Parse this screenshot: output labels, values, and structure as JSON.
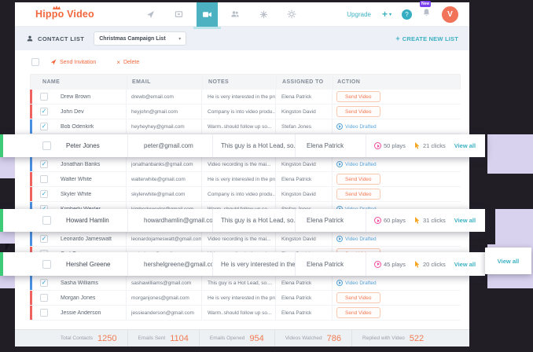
{
  "colors": {
    "brand_orange": "#f2673d",
    "teal": "#3cb1c3",
    "drafted_blue": "#58a6dc",
    "strip_red": "#f0625f",
    "strip_blue": "#4a90e2",
    "overlay_green": "#3ecb78",
    "lavender": "#d9d2ee",
    "plays_pink": "#ef4da0",
    "clicks_orange": "#f5a623",
    "dark_bg": "#211e26"
  },
  "icons": {
    "checkmark": "✓",
    "caret_down": "▾",
    "delete_x": "×",
    "plus": "+",
    "help": "?",
    "nav": [
      "rocket-icon",
      "screen-icon",
      "video-camera-icon",
      "contacts-icon",
      "integrations-icon",
      "settings-icon"
    ],
    "nav_active": "video-camera-icon"
  },
  "navbar": {
    "logo_text": "Hippo Video",
    "upgrade_label": "Upgrade",
    "bell_badge": "New",
    "avatar_initial": "V"
  },
  "subheader": {
    "title": "CONTACT LIST",
    "dropdown_value": "Christmas Campaign List",
    "create_new_label": "CREATE NEW LIST"
  },
  "toolbar": {
    "send_invitation_label": "Send Invitation",
    "delete_label": "Delete"
  },
  "tooltip": {
    "view_all": "View all"
  },
  "table": {
    "headers": [
      "NAME",
      "EMAIL",
      "NOTES",
      "ASSIGNED TO",
      "ACTION"
    ],
    "rows": [
      {
        "type": "normal",
        "name": "Drew Brown",
        "email": "drewb@email.com",
        "notes": "He is very interested in the prod..",
        "assigned": "Elena Patrick",
        "action": "send",
        "action_label": "Send Video",
        "checked": false,
        "strip": "red"
      },
      {
        "type": "normal",
        "name": "John Dev",
        "email": "heyjohn@gmail.com",
        "notes": "Company is into video produ...",
        "assigned": "Kingston David",
        "action": "send",
        "action_label": "Send Video",
        "checked": true,
        "strip": "red"
      },
      {
        "type": "normal",
        "name": "Bob Odenkirk",
        "email": "heyheyhey@gmail.com",
        "notes": "Warm..should follow up so...",
        "assigned": "Stefan Jones",
        "action": "drafted",
        "action_label": "Video Drafted",
        "checked": true,
        "strip": "blue"
      },
      {
        "type": "overlay",
        "name": "Peter Jones",
        "email": "peter@gmail.com",
        "notes": "This guy is a Hot Lead, so...",
        "assigned": "Elena Patrick",
        "plays": "50 plays",
        "clicks": "21 clicks",
        "view_all": "View all",
        "checked": false
      },
      {
        "type": "normal",
        "name": "Jonathan Banks",
        "email": "jonathanbanks@gmail.com",
        "notes": "Video recording is the mai...",
        "assigned": "Kingston David",
        "action": "drafted",
        "action_label": "Video Drafted",
        "checked": true,
        "strip": "blue"
      },
      {
        "type": "normal",
        "name": "Walter White",
        "email": "walterwhite@gmail.com",
        "notes": "He is very interested in the prod..",
        "assigned": "Elena Patrick",
        "action": "send",
        "action_label": "Send Video",
        "checked": false,
        "strip": "red"
      },
      {
        "type": "normal",
        "name": "Skyler White",
        "email": "skylerwhite@gmail.com",
        "notes": "Company is into video produ...",
        "assigned": "Kingston David",
        "action": "send",
        "action_label": "Send Video",
        "checked": true,
        "strip": "red"
      },
      {
        "type": "normal",
        "name": "Kimberly Wexler",
        "email": "kimberlywexler@gmail.com",
        "notes": "Warm..should follow up so...",
        "assigned": "Stefan Jones",
        "action": "drafted",
        "action_label": "Video Drafted",
        "checked": true,
        "strip": "blue"
      },
      {
        "type": "overlay",
        "name": "Howard Hamlin",
        "email": "howardhamlin@gmail.com",
        "notes": "This guy is a Hot Lead, so...",
        "assigned": "Elena Patrick",
        "plays": "60 plays",
        "clicks": "31 clicks",
        "view_all": "View all",
        "checked": false
      },
      {
        "type": "normal",
        "name": "Leonardo Jameswatt",
        "email": "leonardojameswatt@gmail.com",
        "notes": "Video recording is the mai...",
        "assigned": "Kingston David",
        "action": "drafted",
        "action_label": "Video Drafted",
        "checked": true,
        "strip": "blue"
      },
      {
        "type": "normal",
        "name": "Carl Grimes",
        "email": "carlgrimes@email.com",
        "notes": "Video recording is the mai...",
        "assigned": "Elena Patrick",
        "action": "send",
        "action_label": "Send Video",
        "checked": false,
        "strip": "red"
      },
      {
        "type": "overlay",
        "name": "Hershel Greene",
        "email": "hershelgreene@gmail.com",
        "notes": "He is very interested in the prod..",
        "assigned": "Elena Patrick",
        "plays": "45 plays",
        "clicks": "20 clicks",
        "view_all": "View all",
        "checked": false
      },
      {
        "type": "normal",
        "name": "Sasha Williams",
        "email": "sashawilliams@gmail.com",
        "notes": "This guy is a Hot Lead, so....",
        "assigned": "Elena Patrick",
        "action": "drafted",
        "action_label": "Video Drafted",
        "checked": true,
        "strip": "blue"
      },
      {
        "type": "normal",
        "name": "Morgan Jones",
        "email": "morganjones@gmail.com",
        "notes": "He is very interested in the prod..",
        "assigned": "Elena Patrick",
        "action": "send",
        "action_label": "Send Video",
        "checked": false,
        "strip": "red"
      },
      {
        "type": "normal",
        "name": "Jessie Anderson",
        "email": "jessieanderson@gmail.com",
        "notes": "Warm..should follow up so...",
        "assigned": "Elena Patrick",
        "action": "send",
        "action_label": "Send Video",
        "checked": false,
        "strip": "red"
      }
    ]
  },
  "footer": {
    "stats": [
      {
        "label": "Total Contacts",
        "value": "1250"
      },
      {
        "label": "Emails Sent",
        "value": "1104"
      },
      {
        "label": "Emails Opened",
        "value": "954"
      },
      {
        "label": "Videos Watched",
        "value": "786"
      },
      {
        "label": "Replied with Video",
        "value": "522"
      }
    ]
  }
}
